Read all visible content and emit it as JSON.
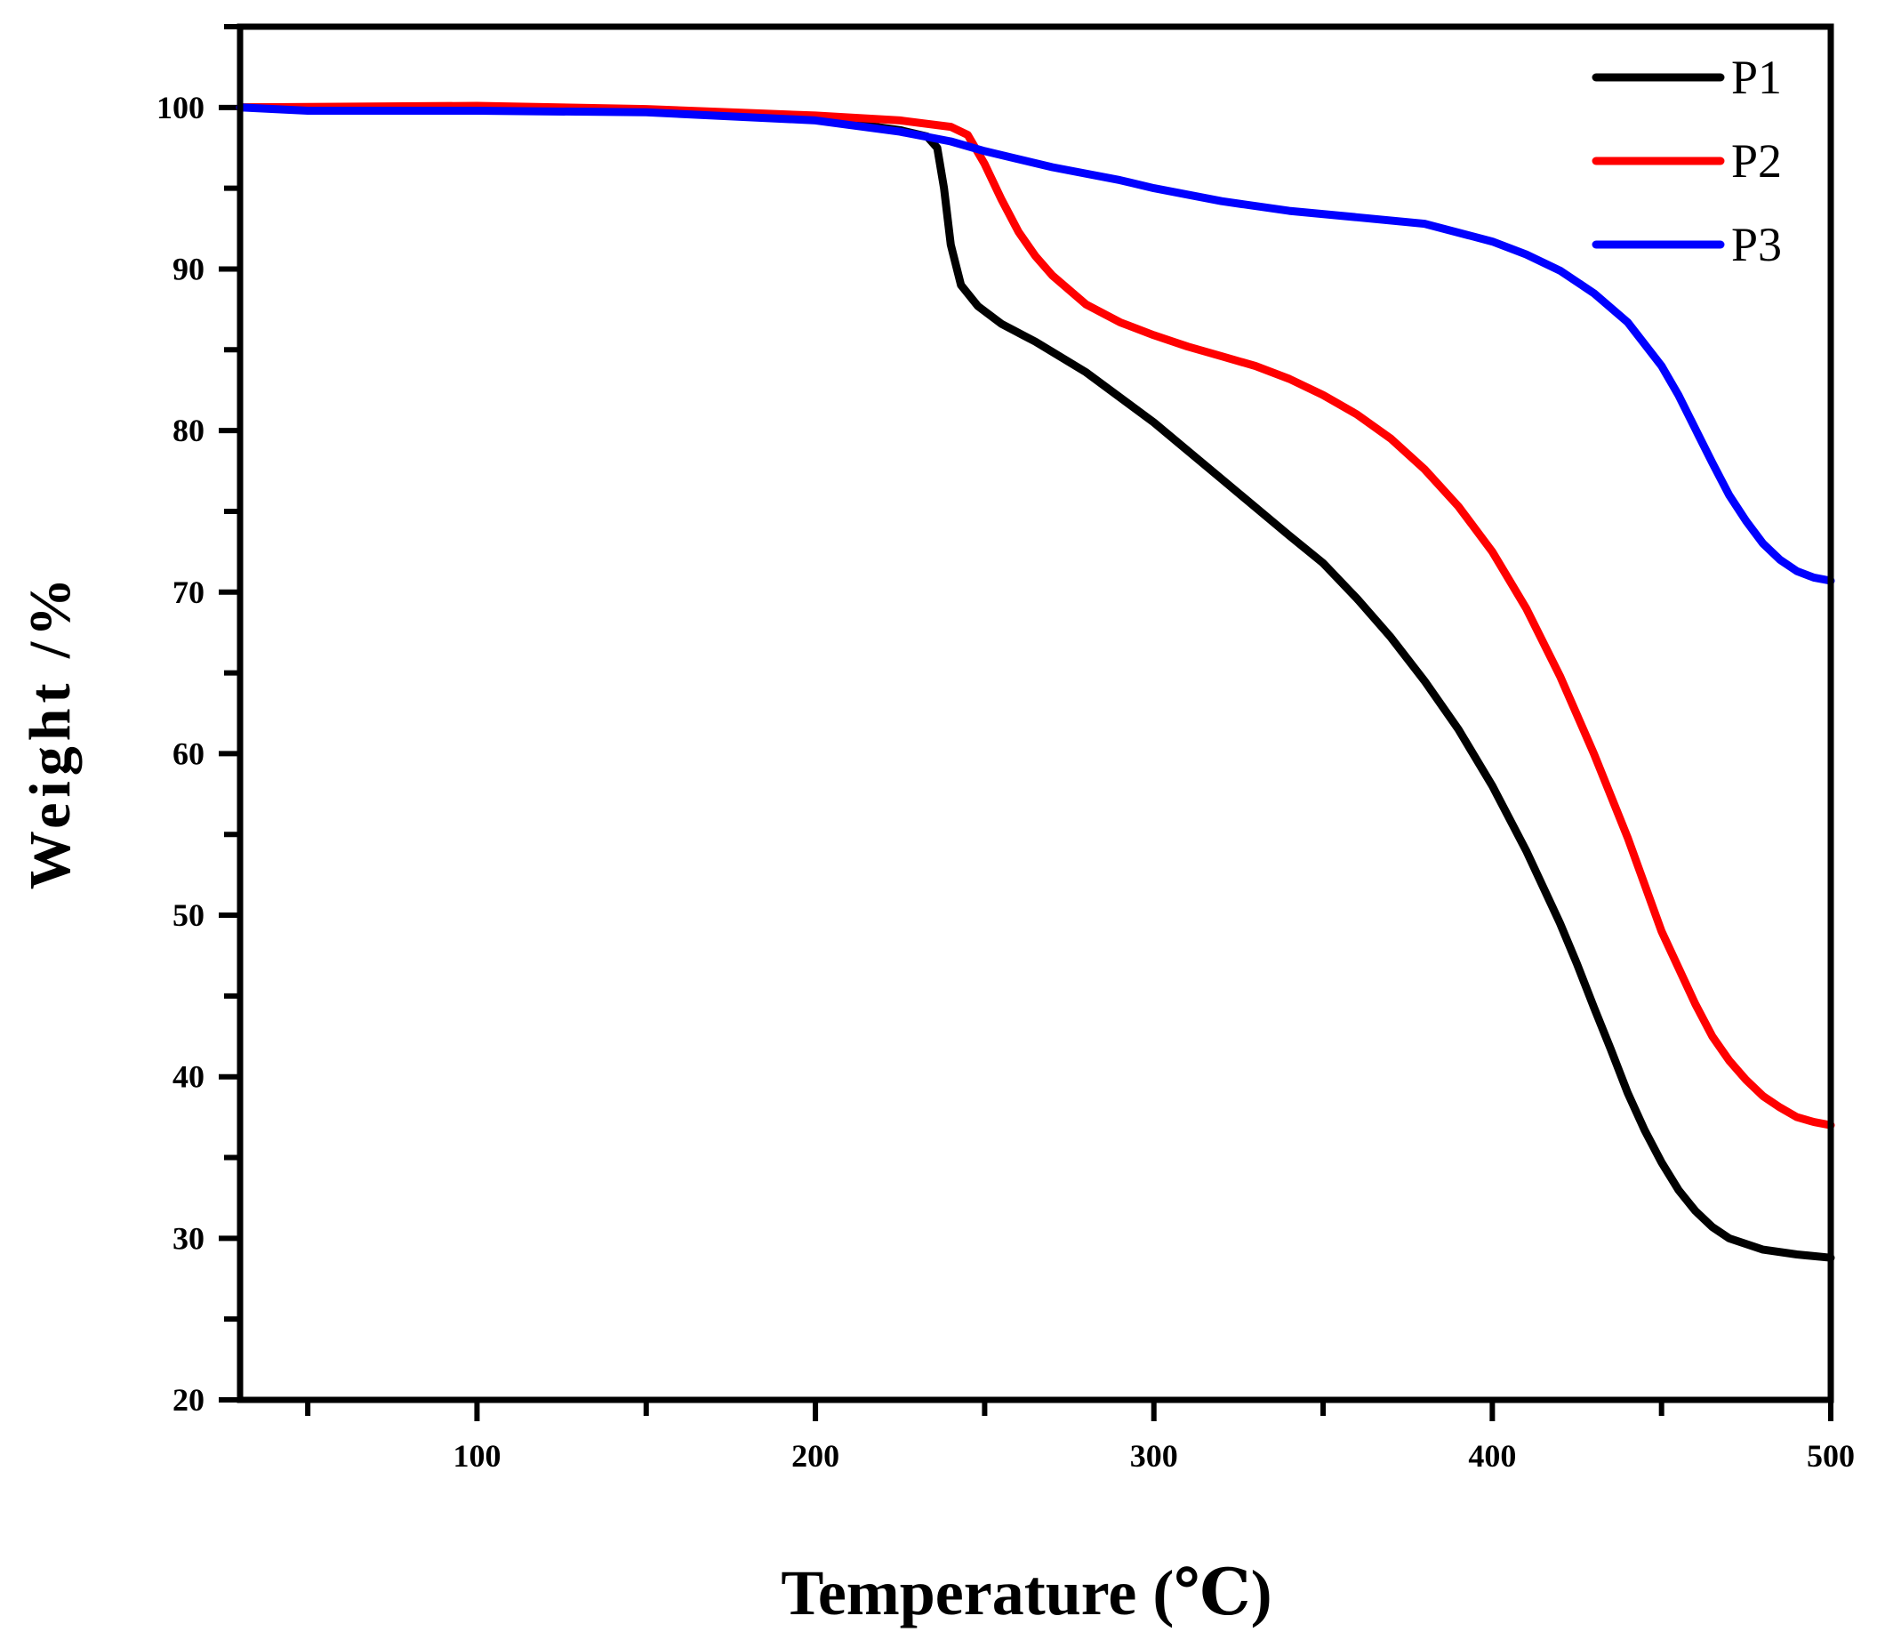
{
  "chart_data": {
    "type": "line",
    "title": "",
    "xlabel": "Temperature (℃)",
    "ylabel": "Weight /%",
    "xlim": [
      30,
      500
    ],
    "ylim": [
      20,
      105
    ],
    "x_ticks": [
      100,
      200,
      300,
      400,
      500
    ],
    "y_ticks": [
      20,
      30,
      40,
      50,
      60,
      70,
      80,
      90,
      100
    ],
    "grid": false,
    "legend_position": "top-right",
    "series": [
      {
        "name": "P1",
        "color": "#000000",
        "points": [
          [
            30,
            100
          ],
          [
            100,
            100
          ],
          [
            150,
            99.8
          ],
          [
            200,
            99.3
          ],
          [
            225,
            98.6
          ],
          [
            233,
            98.2
          ],
          [
            236,
            97.5
          ],
          [
            238,
            95
          ],
          [
            240,
            91.5
          ],
          [
            243,
            89
          ],
          [
            248,
            87.7
          ],
          [
            255,
            86.6
          ],
          [
            265,
            85.5
          ],
          [
            280,
            83.6
          ],
          [
            300,
            80.5
          ],
          [
            320,
            77
          ],
          [
            340,
            73.5
          ],
          [
            350,
            71.8
          ],
          [
            360,
            69.6
          ],
          [
            370,
            67.2
          ],
          [
            380,
            64.5
          ],
          [
            390,
            61.5
          ],
          [
            400,
            58
          ],
          [
            410,
            54
          ],
          [
            420,
            49.5
          ],
          [
            425,
            47
          ],
          [
            430,
            44.3
          ],
          [
            435,
            41.7
          ],
          [
            440,
            39
          ],
          [
            445,
            36.7
          ],
          [
            450,
            34.7
          ],
          [
            455,
            33
          ],
          [
            460,
            31.7
          ],
          [
            465,
            30.7
          ],
          [
            470,
            30
          ],
          [
            480,
            29.3
          ],
          [
            490,
            29
          ],
          [
            500,
            28.8
          ]
        ]
      },
      {
        "name": "P2",
        "color": "#ff0000",
        "points": [
          [
            30,
            100
          ],
          [
            100,
            100.1
          ],
          [
            150,
            99.9
          ],
          [
            200,
            99.5
          ],
          [
            225,
            99.2
          ],
          [
            240,
            98.8
          ],
          [
            245,
            98.3
          ],
          [
            250,
            96.5
          ],
          [
            255,
            94.3
          ],
          [
            260,
            92.3
          ],
          [
            265,
            90.8
          ],
          [
            270,
            89.6
          ],
          [
            280,
            87.8
          ],
          [
            290,
            86.7
          ],
          [
            300,
            85.9
          ],
          [
            310,
            85.2
          ],
          [
            320,
            84.6
          ],
          [
            330,
            84
          ],
          [
            340,
            83.2
          ],
          [
            350,
            82.2
          ],
          [
            360,
            81
          ],
          [
            370,
            79.5
          ],
          [
            380,
            77.6
          ],
          [
            390,
            75.3
          ],
          [
            400,
            72.5
          ],
          [
            410,
            69
          ],
          [
            420,
            64.8
          ],
          [
            430,
            60
          ],
          [
            440,
            54.8
          ],
          [
            450,
            49
          ],
          [
            460,
            44.5
          ],
          [
            465,
            42.5
          ],
          [
            470,
            41
          ],
          [
            475,
            39.8
          ],
          [
            480,
            38.8
          ],
          [
            485,
            38.1
          ],
          [
            490,
            37.5
          ],
          [
            495,
            37.2
          ],
          [
            500,
            37
          ]
        ]
      },
      {
        "name": "P3",
        "color": "#0000ff",
        "points": [
          [
            30,
            100
          ],
          [
            50,
            99.8
          ],
          [
            100,
            99.8
          ],
          [
            150,
            99.7
          ],
          [
            200,
            99.2
          ],
          [
            225,
            98.5
          ],
          [
            240,
            97.9
          ],
          [
            250,
            97.3
          ],
          [
            270,
            96.3
          ],
          [
            290,
            95.5
          ],
          [
            300,
            95
          ],
          [
            320,
            94.2
          ],
          [
            340,
            93.6
          ],
          [
            360,
            93.2
          ],
          [
            380,
            92.8
          ],
          [
            400,
            91.7
          ],
          [
            410,
            90.9
          ],
          [
            420,
            89.9
          ],
          [
            430,
            88.5
          ],
          [
            440,
            86.7
          ],
          [
            450,
            84
          ],
          [
            455,
            82.2
          ],
          [
            460,
            80.1
          ],
          [
            465,
            78
          ],
          [
            470,
            76
          ],
          [
            475,
            74.4
          ],
          [
            480,
            73
          ],
          [
            485,
            72
          ],
          [
            490,
            71.3
          ],
          [
            495,
            70.9
          ],
          [
            500,
            70.7
          ]
        ]
      }
    ]
  }
}
